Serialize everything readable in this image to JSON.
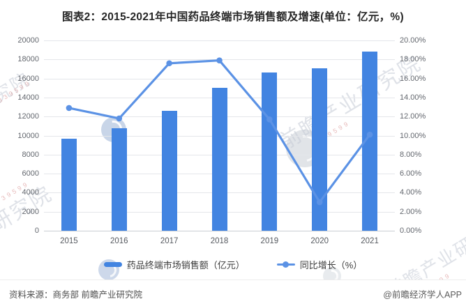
{
  "title": "图表2：2015-2021年中国药品终端市场销售额及增速(单位：亿元，%)",
  "chart_data": {
    "type": "bar+line combo",
    "categories": [
      "2015",
      "2016",
      "2017",
      "2018",
      "2019",
      "2020",
      "2021"
    ],
    "series": [
      {
        "name": "药品终端市场销售额（亿元）",
        "type": "bar",
        "axis": "left",
        "values": [
          9700,
          10800,
          12600,
          15000,
          16600,
          17050,
          18850
        ]
      },
      {
        "name": "同比增长（%）",
        "type": "line",
        "axis": "right",
        "values": [
          12.9,
          11.8,
          17.6,
          17.9,
          11.7,
          3.0,
          10.1
        ]
      }
    ],
    "left_axis": {
      "min": 0,
      "max": 20000,
      "step": 2000,
      "tick_labels": [
        "20000",
        "18000",
        "16000",
        "14000",
        "12000",
        "10000",
        "8000",
        "6000",
        "4000",
        "2000",
        "0"
      ]
    },
    "right_axis": {
      "min": 0,
      "max": 20,
      "step": 2,
      "tick_labels": [
        "20.00%",
        "18.00%",
        "16.00%",
        "14.00%",
        "12.00%",
        "10.00%",
        "8.00%",
        "6.00%",
        "4.00%",
        "2.00%",
        "0.00%"
      ]
    },
    "grid": true,
    "legend_position": "bottom"
  },
  "legend": {
    "items": [
      {
        "label": "药品终端市场销售额（亿元）",
        "swatch": "bar"
      },
      {
        "label": "同比增长（%）",
        "swatch": "line"
      }
    ]
  },
  "footer": {
    "source": "资料来源：商务部 前瞻产业研究院",
    "brand": "@前瞻经济学人APP"
  },
  "watermarks": {
    "brand_text": "前瞻产业研究院",
    "partial_text_bottom_left": "研究院",
    "partial_text_top_left": "究院",
    "stock_code": "839599",
    "logo_name": "foresight-circle-logo"
  },
  "colors": {
    "bar": "#4284e1",
    "line": "#5b92e5",
    "grid": "#e4e6ea",
    "axis_line": "#c9cdd3",
    "watermark_gray": "#c6ccd6",
    "watermark_red": "#dd9c9c"
  }
}
